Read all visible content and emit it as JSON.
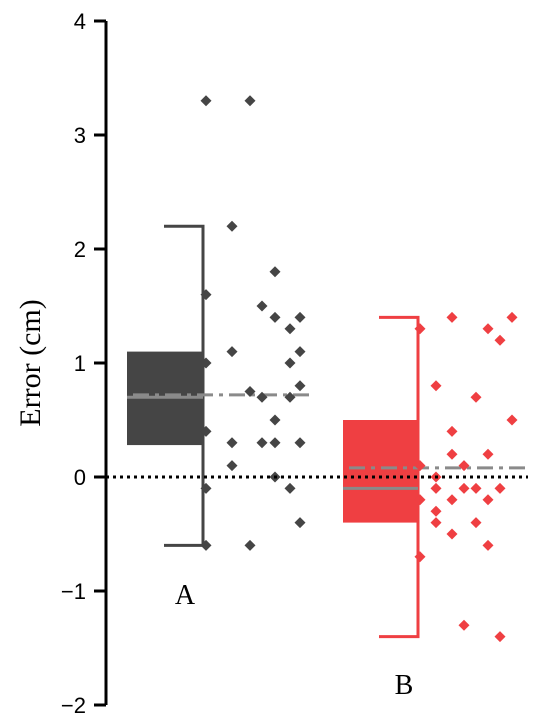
{
  "chart_data": {
    "type": "box-scatter",
    "title": "",
    "xlabel": "",
    "ylabel": "Error (cm)",
    "ylim": [
      -2,
      4
    ],
    "yticks": [
      4,
      3,
      2,
      1,
      0,
      -1,
      -2
    ],
    "ytick_labels": [
      "4",
      "3",
      "2",
      "1",
      "0",
      "−1",
      "−2"
    ],
    "reference_line": 0,
    "groups": [
      {
        "label": "A",
        "color": "#454545",
        "box": {
          "q1": 0.28,
          "q3": 1.1,
          "median": 0.7,
          "mean": 0.72,
          "whisker_low": -0.6,
          "whisker_high": 2.2
        },
        "points": [
          3.3,
          3.3,
          2.2,
          1.8,
          1.6,
          1.5,
          1.4,
          1.4,
          1.3,
          1.1,
          1.1,
          1.0,
          1.0,
          0.8,
          0.75,
          0.7,
          0.7,
          0.5,
          0.4,
          0.3,
          0.3,
          0.3,
          0.3,
          0.1,
          0.0,
          -0.1,
          -0.1,
          -0.4,
          -0.6,
          -0.6
        ]
      },
      {
        "label": "B",
        "color": "#ef3f42",
        "box": {
          "q1": -0.4,
          "q3": 0.5,
          "median": -0.1,
          "mean": 0.08,
          "whisker_low": -1.4,
          "whisker_high": 1.4
        },
        "points": [
          1.4,
          1.4,
          1.3,
          1.3,
          1.2,
          0.8,
          0.7,
          0.5,
          0.4,
          0.2,
          0.2,
          0.1,
          0.1,
          0.0,
          -0.1,
          -0.1,
          -0.1,
          -0.1,
          -0.2,
          -0.2,
          -0.2,
          -0.3,
          -0.4,
          -0.4,
          -0.5,
          -0.6,
          -0.7,
          -1.3,
          -1.4
        ]
      }
    ]
  }
}
